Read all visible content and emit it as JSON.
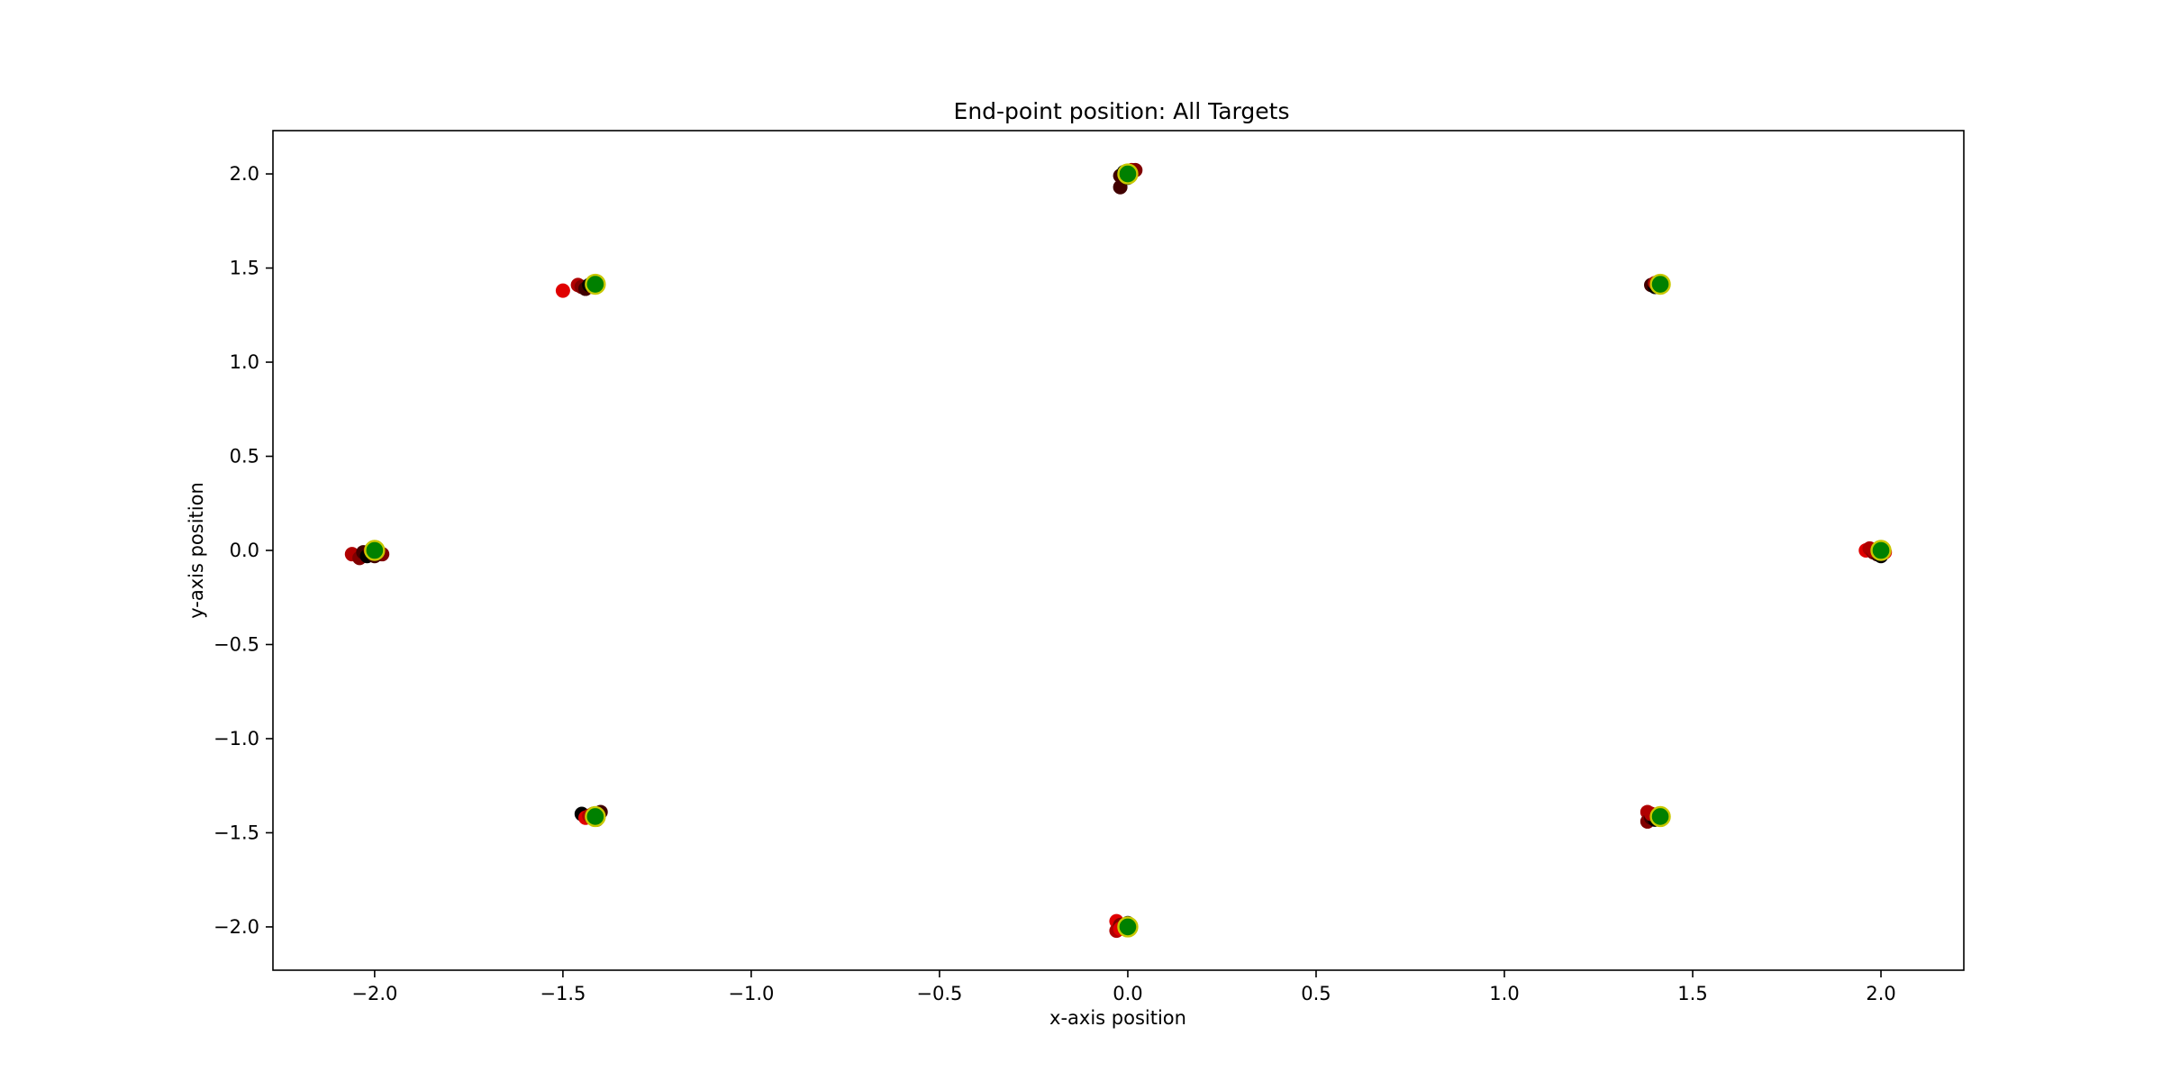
{
  "chart_data": {
    "type": "scatter",
    "title": "End-point position: All Targets",
    "xlabel": "x-axis position",
    "ylabel": "y-axis position",
    "xlim": [
      -2.27,
      2.22
    ],
    "ylim": [
      -2.23,
      2.23
    ],
    "xticks": [
      -2.0,
      -1.5,
      -1.0,
      -0.5,
      0.0,
      0.5,
      1.0,
      1.5,
      2.0
    ],
    "yticks": [
      -2.0,
      -1.5,
      -1.0,
      -0.5,
      0.0,
      0.5,
      1.0,
      1.5,
      2.0
    ],
    "xtick_labels": [
      "−2.0",
      "−1.5",
      "−1.0",
      "−0.5",
      "0.0",
      "0.5",
      "1.0",
      "1.5",
      "2.0"
    ],
    "ytick_labels": [
      "−2.0",
      "−1.5",
      "−1.0",
      "−0.5",
      "0.0",
      "0.5",
      "1.0",
      "1.5",
      "2.0"
    ],
    "grid": false,
    "legend": "none",
    "colors": {
      "target_fill": "#008000",
      "target_edge": "#c8c800",
      "endpoint_palette": [
        "#e00000",
        "#b00000",
        "#800000",
        "#400000",
        "#000000"
      ]
    },
    "series": [
      {
        "role": "end-points",
        "color_group": "red-to-black",
        "points": [
          [
            1.96,
            0.0
          ],
          [
            1.97,
            0.01
          ],
          [
            1.98,
            -0.01
          ],
          [
            1.99,
            -0.02
          ],
          [
            2.0,
            -0.03
          ],
          [
            2.01,
            -0.01
          ],
          [
            1.98,
            0.0
          ],
          [
            2.0,
            0.0
          ],
          [
            1.39,
            1.41
          ],
          [
            1.4,
            1.4
          ],
          [
            1.41,
            1.4
          ],
          [
            1.4,
            1.42
          ],
          [
            1.42,
            1.41
          ],
          [
            -0.02,
            1.99
          ],
          [
            -0.01,
            2.01
          ],
          [
            0.0,
            2.0
          ],
          [
            0.01,
            2.02
          ],
          [
            0.02,
            2.02
          ],
          [
            -0.02,
            1.93
          ],
          [
            0.0,
            1.98
          ],
          [
            -1.5,
            1.38
          ],
          [
            -1.46,
            1.41
          ],
          [
            -1.45,
            1.4
          ],
          [
            -1.44,
            1.39
          ],
          [
            -1.43,
            1.41
          ],
          [
            -1.42,
            1.4
          ],
          [
            -2.06,
            -0.02
          ],
          [
            -2.04,
            -0.04
          ],
          [
            -2.03,
            -0.01
          ],
          [
            -2.02,
            -0.03
          ],
          [
            -2.01,
            0.0
          ],
          [
            -1.99,
            -0.01
          ],
          [
            -1.98,
            -0.02
          ],
          [
            -2.0,
            -0.03
          ],
          [
            -1.45,
            -1.4
          ],
          [
            -1.44,
            -1.42
          ],
          [
            -1.43,
            -1.41
          ],
          [
            -1.42,
            -1.4
          ],
          [
            -1.4,
            -1.39
          ],
          [
            -1.41,
            -1.43
          ],
          [
            -0.03,
            -1.97
          ],
          [
            -0.03,
            -2.02
          ],
          [
            -0.02,
            -1.99
          ],
          [
            -0.01,
            -2.0
          ],
          [
            0.0,
            -1.98
          ],
          [
            -0.02,
            -2.01
          ],
          [
            1.38,
            -1.39
          ],
          [
            1.38,
            -1.44
          ],
          [
            1.39,
            -1.42
          ],
          [
            1.4,
            -1.43
          ],
          [
            1.41,
            -1.41
          ],
          [
            1.39,
            -1.4
          ]
        ]
      },
      {
        "role": "targets",
        "color_group": "green",
        "points": [
          [
            2.0,
            0.0
          ],
          [
            1.414,
            1.414
          ],
          [
            0.0,
            2.0
          ],
          [
            -1.414,
            1.414
          ],
          [
            -2.0,
            0.0
          ],
          [
            -1.414,
            -1.414
          ],
          [
            0.0,
            -2.0
          ],
          [
            1.414,
            -1.414
          ]
        ]
      }
    ]
  }
}
